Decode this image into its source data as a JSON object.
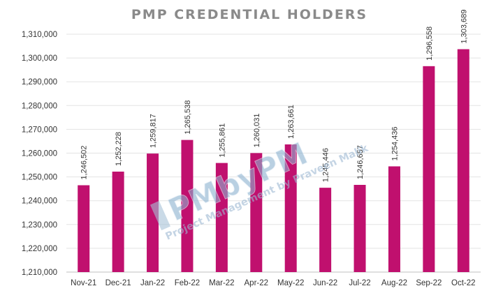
{
  "chart_data": {
    "type": "bar",
    "title": "PMP CREDENTIAL HOLDERS",
    "xlabel": "",
    "ylabel": "",
    "categories": [
      "Nov-21",
      "Dec-21",
      "Jan-22",
      "Feb-22",
      "Mar-22",
      "Apr-22",
      "May-22",
      "Jun-22",
      "Jul-22",
      "Aug-22",
      "Sep-22",
      "Oct-22"
    ],
    "values": [
      1246502,
      1252228,
      1259817,
      1265538,
      1255861,
      1260031,
      1263661,
      1245446,
      1246657,
      1254436,
      1296558,
      1303689
    ],
    "value_labels": [
      "1,246,502",
      "1,252,228",
      "1,259,817",
      "1,265,538",
      "1,255,861",
      "1,260,031",
      "1,263,661",
      "1,245,446",
      "1,246,657",
      "1,254,436",
      "1,296,558",
      "1,303,689"
    ],
    "ylim": [
      1210000,
      1310000
    ],
    "ytick_values": [
      1210000,
      1220000,
      1230000,
      1240000,
      1250000,
      1260000,
      1270000,
      1280000,
      1290000,
      1300000,
      1310000
    ],
    "ytick_labels": [
      "1,210,000",
      "1,220,000",
      "1,230,000",
      "1,240,000",
      "1,250,000",
      "1,260,000",
      "1,270,000",
      "1,280,000",
      "1,290,000",
      "1,300,000",
      "1,310,000"
    ],
    "grid": true,
    "legend": "none",
    "bar_color": "#c0106e"
  },
  "watermark": {
    "logo": "PMbyPM",
    "tagline": "Project Management by Praveen Malik"
  }
}
